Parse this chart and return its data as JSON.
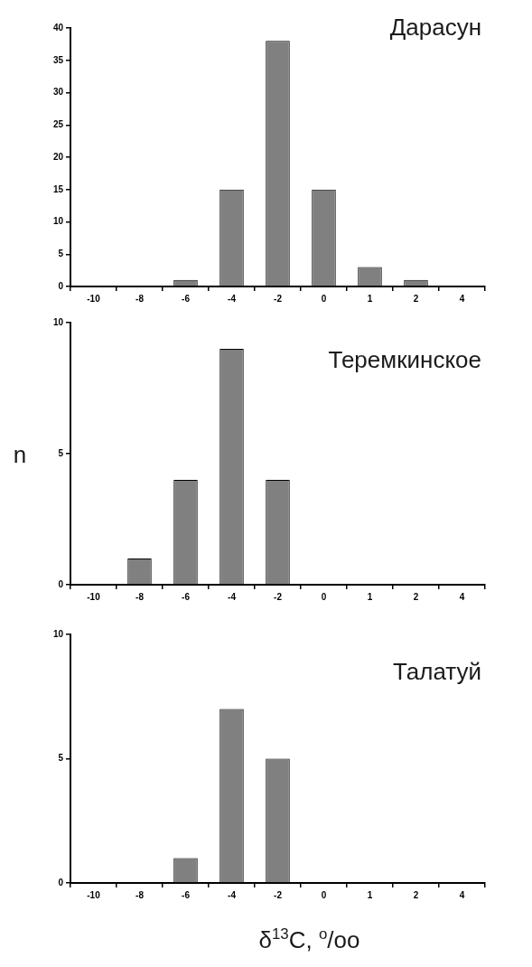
{
  "chart_data": [
    {
      "type": "bar",
      "title": "Дарасун",
      "categories": [
        "-10",
        "-8",
        "-6",
        "-4",
        "-2",
        "0",
        "1",
        "2",
        "4"
      ],
      "values": [
        0,
        0,
        1,
        15,
        38,
        15,
        3,
        1,
        0
      ],
      "color": "#808080",
      "ylim": [
        0,
        40
      ],
      "yticks": [
        0,
        5,
        10,
        15,
        20,
        25,
        30,
        35,
        40
      ],
      "grid": false
    },
    {
      "type": "bar",
      "title": "Теремкинское",
      "ylabel": "n",
      "categories": [
        "-10",
        "-8",
        "-6",
        "-4",
        "-2",
        "0",
        "1",
        "2",
        "4"
      ],
      "values": [
        0,
        1,
        4,
        9,
        4,
        0,
        0,
        0,
        0
      ],
      "color": "#808080",
      "ylim": [
        0,
        10
      ],
      "yticks": [
        0,
        5,
        10
      ],
      "grid": false
    },
    {
      "type": "bar",
      "title": "Талатуй",
      "xlabel": "δ$^{13}$C, $^{o}$/oo",
      "categories": [
        "-10",
        "-8",
        "-6",
        "-4",
        "-2",
        "0",
        "1",
        "2",
        "4"
      ],
      "values": [
        0,
        0,
        1,
        7,
        5,
        0,
        0,
        0,
        0
      ],
      "color": "#808080",
      "ylim": [
        0,
        10
      ],
      "yticks": [
        0,
        5,
        10
      ],
      "grid": false
    }
  ]
}
